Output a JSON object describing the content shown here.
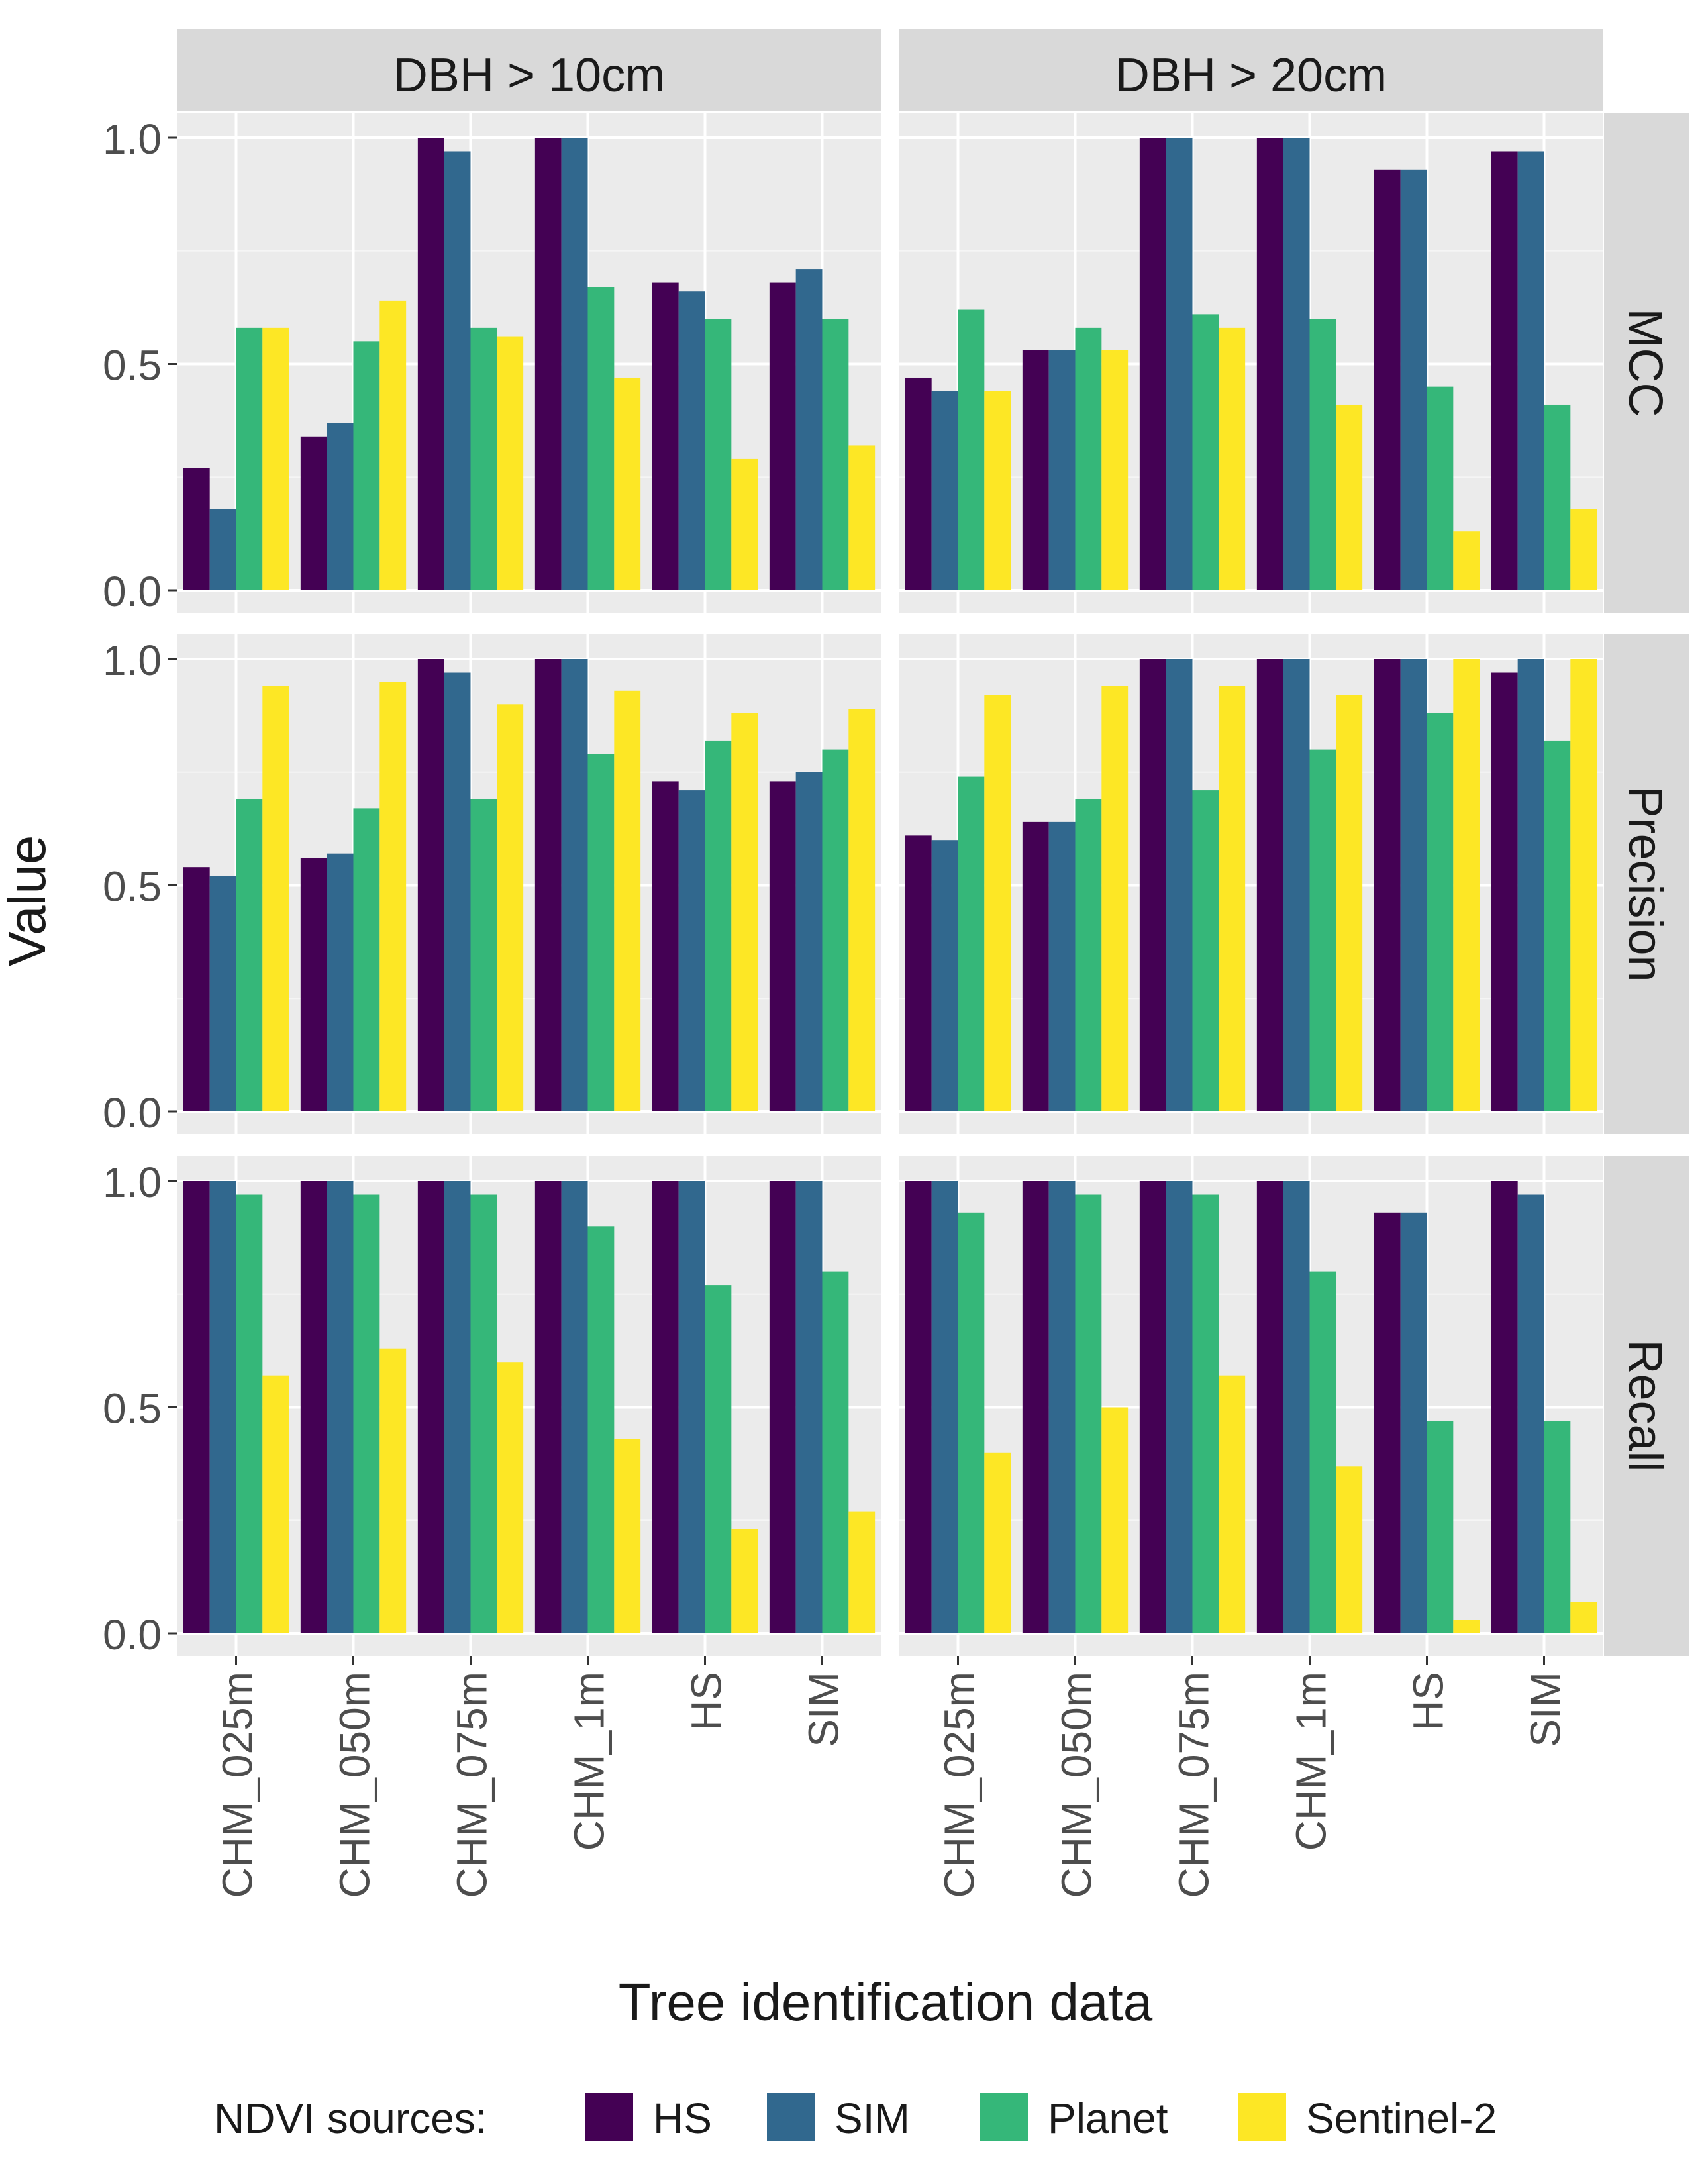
{
  "chart_data": {
    "type": "bar",
    "ylabel": "Value",
    "xlabel": "Tree identification data",
    "categories": [
      "CHM_025m",
      "CHM_050m",
      "CHM_075m",
      "CHM_1m",
      "HS",
      "SIM"
    ],
    "ylim": [
      0,
      1.05
    ],
    "yticks": [
      0.0,
      0.5,
      1.0
    ],
    "ytick_labels": [
      "0.0",
      "0.5",
      "1.0"
    ],
    "grid": true,
    "legend": {
      "title": "NDVI sources:",
      "placement": "bottom",
      "items": [
        {
          "name": "HS",
          "color": "#440154"
        },
        {
          "name": "SIM",
          "color": "#31688e"
        },
        {
          "name": "Planet",
          "color": "#35b779"
        },
        {
          "name": "Sentinel-2",
          "color": "#fde725"
        }
      ]
    },
    "columns": [
      {
        "label": "DBH > 10cm"
      },
      {
        "label": "DBH > 20cm"
      }
    ],
    "rows": [
      {
        "label": "MCC"
      },
      {
        "label": "Precision"
      },
      {
        "label": "Recall"
      }
    ],
    "panels": [
      [
        {
          "series": [
            {
              "name": "HS",
              "values": [
                0.27,
                0.34,
                1.0,
                1.0,
                0.68,
                0.68
              ]
            },
            {
              "name": "SIM",
              "values": [
                0.18,
                0.37,
                0.97,
                1.0,
                0.66,
                0.71
              ]
            },
            {
              "name": "Planet",
              "values": [
                0.58,
                0.55,
                0.58,
                0.67,
                0.6,
                0.6
              ]
            },
            {
              "name": "Sentinel-2",
              "values": [
                0.58,
                0.64,
                0.56,
                0.47,
                0.29,
                0.32
              ]
            }
          ]
        },
        {
          "series": [
            {
              "name": "HS",
              "values": [
                0.47,
                0.53,
                1.0,
                1.0,
                0.93,
                0.97
              ]
            },
            {
              "name": "SIM",
              "values": [
                0.44,
                0.53,
                1.0,
                1.0,
                0.93,
                0.97
              ]
            },
            {
              "name": "Planet",
              "values": [
                0.62,
                0.58,
                0.61,
                0.6,
                0.45,
                0.41
              ]
            },
            {
              "name": "Sentinel-2",
              "values": [
                0.44,
                0.53,
                0.58,
                0.41,
                0.13,
                0.18
              ]
            }
          ]
        }
      ],
      [
        {
          "series": [
            {
              "name": "HS",
              "values": [
                0.54,
                0.56,
                1.0,
                1.0,
                0.73,
                0.73
              ]
            },
            {
              "name": "SIM",
              "values": [
                0.52,
                0.57,
                0.97,
                1.0,
                0.71,
                0.75
              ]
            },
            {
              "name": "Planet",
              "values": [
                0.69,
                0.67,
                0.69,
                0.79,
                0.82,
                0.8
              ]
            },
            {
              "name": "Sentinel-2",
              "values": [
                0.94,
                0.95,
                0.9,
                0.93,
                0.88,
                0.89
              ]
            }
          ]
        },
        {
          "series": [
            {
              "name": "HS",
              "values": [
                0.61,
                0.64,
                1.0,
                1.0,
                1.0,
                0.97
              ]
            },
            {
              "name": "SIM",
              "values": [
                0.6,
                0.64,
                1.0,
                1.0,
                1.0,
                1.0
              ]
            },
            {
              "name": "Planet",
              "values": [
                0.74,
                0.69,
                0.71,
                0.8,
                0.88,
                0.82
              ]
            },
            {
              "name": "Sentinel-2",
              "values": [
                0.92,
                0.94,
                0.94,
                0.92,
                1.0,
                1.0
              ]
            }
          ]
        }
      ],
      [
        {
          "series": [
            {
              "name": "HS",
              "values": [
                1.0,
                1.0,
                1.0,
                1.0,
                1.0,
                1.0
              ]
            },
            {
              "name": "SIM",
              "values": [
                1.0,
                1.0,
                1.0,
                1.0,
                1.0,
                1.0
              ]
            },
            {
              "name": "Planet",
              "values": [
                0.97,
                0.97,
                0.97,
                0.9,
                0.77,
                0.8
              ]
            },
            {
              "name": "Sentinel-2",
              "values": [
                0.57,
                0.63,
                0.6,
                0.43,
                0.23,
                0.27
              ]
            }
          ]
        },
        {
          "series": [
            {
              "name": "HS",
              "values": [
                1.0,
                1.0,
                1.0,
                1.0,
                0.93,
                1.0
              ]
            },
            {
              "name": "SIM",
              "values": [
                1.0,
                1.0,
                1.0,
                1.0,
                0.93,
                0.97
              ]
            },
            {
              "name": "Planet",
              "values": [
                0.93,
                0.97,
                0.97,
                0.8,
                0.47,
                0.47
              ]
            },
            {
              "name": "Sentinel-2",
              "values": [
                0.4,
                0.5,
                0.57,
                0.37,
                0.03,
                0.07
              ]
            }
          ]
        }
      ]
    ]
  }
}
